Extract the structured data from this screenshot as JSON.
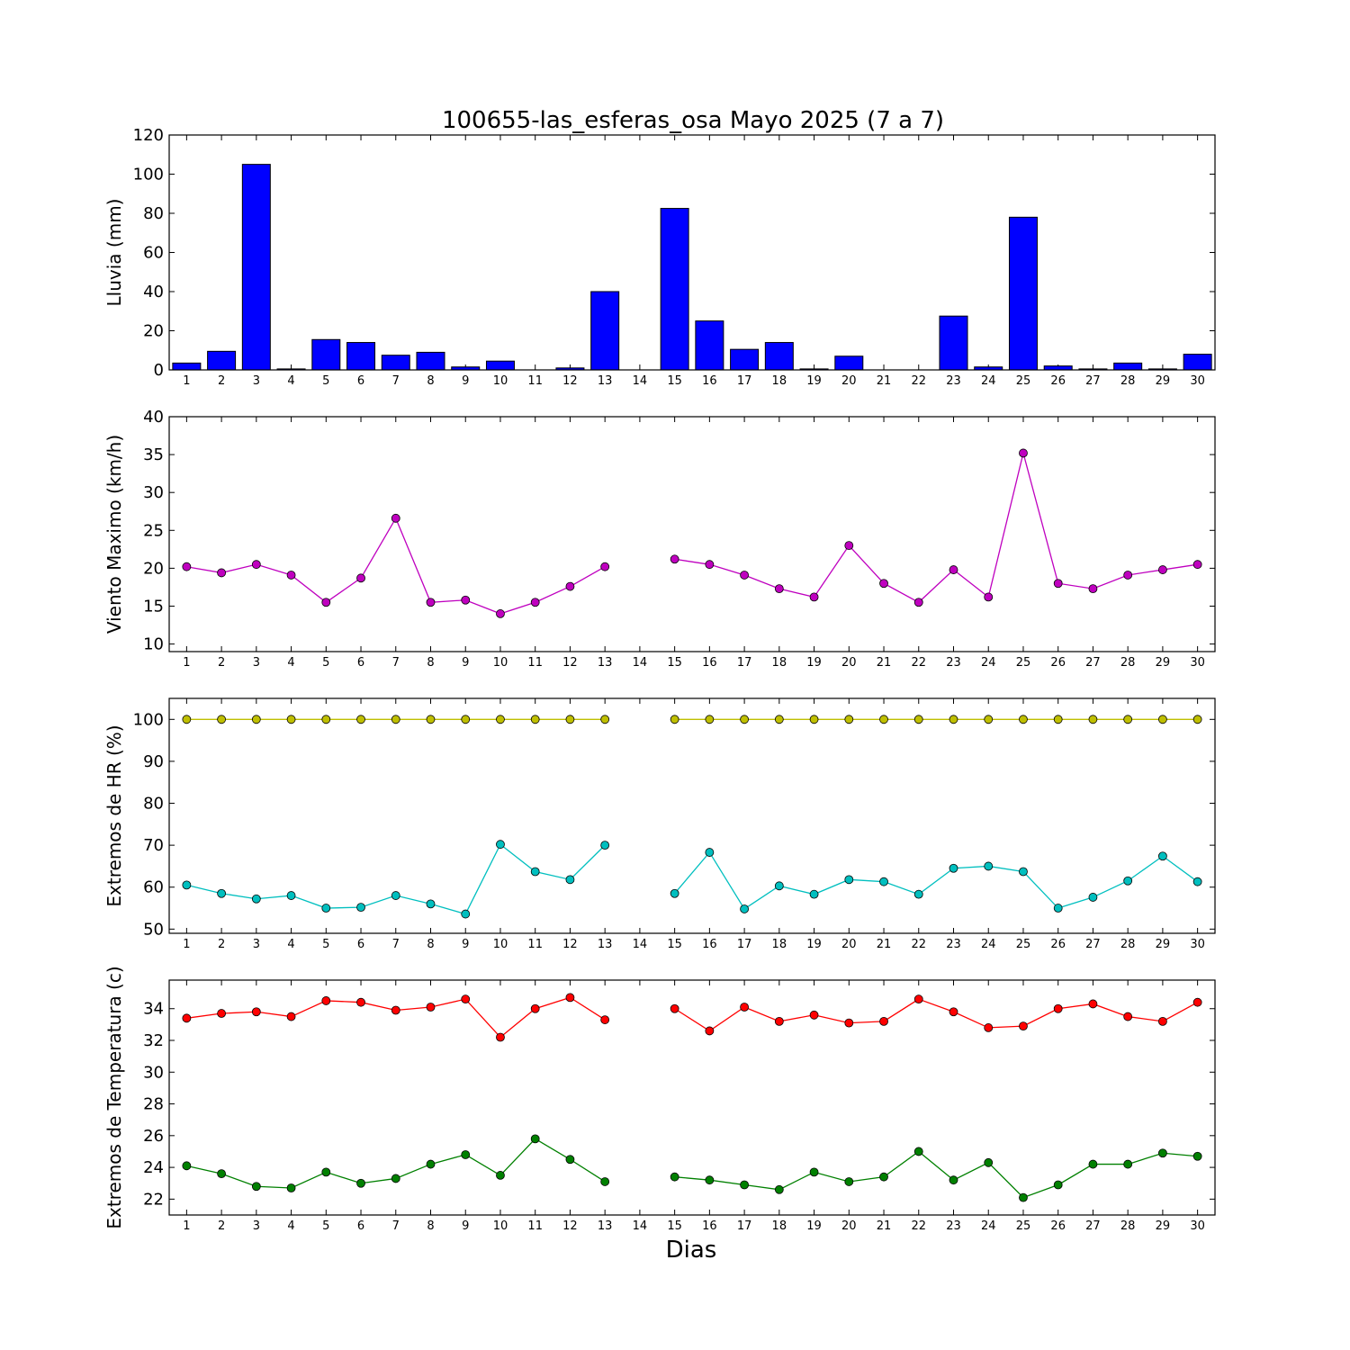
{
  "chart_data": {
    "title": "100655-las_esferas_osa Mayo 2025  (7 a 7)",
    "xlabel": "Dias",
    "days": [
      1,
      2,
      3,
      4,
      5,
      6,
      7,
      8,
      9,
      10,
      11,
      12,
      13,
      14,
      15,
      16,
      17,
      18,
      19,
      20,
      21,
      22,
      23,
      24,
      25,
      26,
      27,
      28,
      29,
      30
    ],
    "subplots": [
      {
        "type": "bar",
        "ylabel": "Lluvia (mm)",
        "ylim": [
          0,
          120
        ],
        "yticks": [
          0,
          20,
          40,
          60,
          80,
          100,
          120
        ],
        "series": [
          {
            "color": "#0000ff",
            "values": [
              3.5,
              9.5,
              105,
              0.5,
              15.5,
              14,
              7.5,
              9,
              1.5,
              4.5,
              0,
              1,
              40,
              0,
              82.5,
              25,
              10.5,
              14,
              0.5,
              7,
              0,
              0,
              27.5,
              1.5,
              78,
              2,
              0.5,
              3.5,
              0.5,
              8
            ]
          }
        ]
      },
      {
        "type": "line",
        "ylabel": "Viento Maximo (km/h)",
        "ylim": [
          9,
          40
        ],
        "yticks": [
          10,
          15,
          20,
          25,
          30,
          35,
          40
        ],
        "series": [
          {
            "color": "#bf00bf",
            "values": [
              20.2,
              19.4,
              20.5,
              19.1,
              15.5,
              18.7,
              26.6,
              15.5,
              15.8,
              14.0,
              15.5,
              17.6,
              20.2,
              null,
              21.2,
              20.5,
              19.1,
              17.3,
              16.2,
              23.0,
              18.0,
              15.5,
              19.8,
              16.2,
              35.2,
              18.0,
              17.3,
              19.1,
              19.8,
              20.5
            ]
          }
        ]
      },
      {
        "type": "line",
        "ylabel": "Extremos de HR (%)",
        "ylim": [
          49,
          105
        ],
        "yticks": [
          50,
          60,
          70,
          80,
          90,
          100
        ],
        "series": [
          {
            "color": "#bfbf00",
            "values": [
              100,
              100,
              100,
              100,
              100,
              100,
              100,
              100,
              100,
              100,
              100,
              100,
              100,
              null,
              100,
              100,
              100,
              100,
              100,
              100,
              100,
              100,
              100,
              100,
              100,
              100,
              100,
              100,
              100,
              100
            ]
          },
          {
            "color": "#00bfbf",
            "values": [
              60.5,
              58.5,
              57.2,
              58.0,
              55.0,
              55.2,
              58.0,
              56.0,
              53.6,
              70.2,
              63.7,
              61.8,
              70.0,
              null,
              58.5,
              68.3,
              54.8,
              60.3,
              58.3,
              61.8,
              61.3,
              58.3,
              64.5,
              65.0,
              63.7,
              55.0,
              57.6,
              61.5,
              67.4,
              61.3
            ]
          }
        ]
      },
      {
        "type": "line",
        "ylabel": "Extremos de Temperatura (c)",
        "ylim": [
          21,
          35.8
        ],
        "yticks": [
          22,
          24,
          26,
          28,
          30,
          32,
          34
        ],
        "series": [
          {
            "color": "#ff0000",
            "values": [
              33.4,
              33.7,
              33.8,
              33.5,
              34.5,
              34.4,
              33.9,
              34.1,
              34.6,
              32.2,
              34.0,
              34.7,
              33.3,
              null,
              34.0,
              32.6,
              34.1,
              33.2,
              33.6,
              33.1,
              33.2,
              34.6,
              33.8,
              32.8,
              32.9,
              34.0,
              34.3,
              33.5,
              33.2,
              34.4
            ]
          },
          {
            "color": "#008000",
            "values": [
              24.1,
              23.6,
              22.8,
              22.7,
              23.7,
              23.0,
              23.3,
              24.2,
              24.8,
              23.5,
              25.8,
              24.5,
              23.1,
              null,
              23.4,
              23.2,
              22.9,
              22.6,
              23.7,
              23.1,
              23.4,
              25.0,
              23.2,
              24.3,
              22.1,
              22.9,
              24.2,
              24.2,
              24.9,
              24.7
            ]
          }
        ]
      }
    ]
  }
}
